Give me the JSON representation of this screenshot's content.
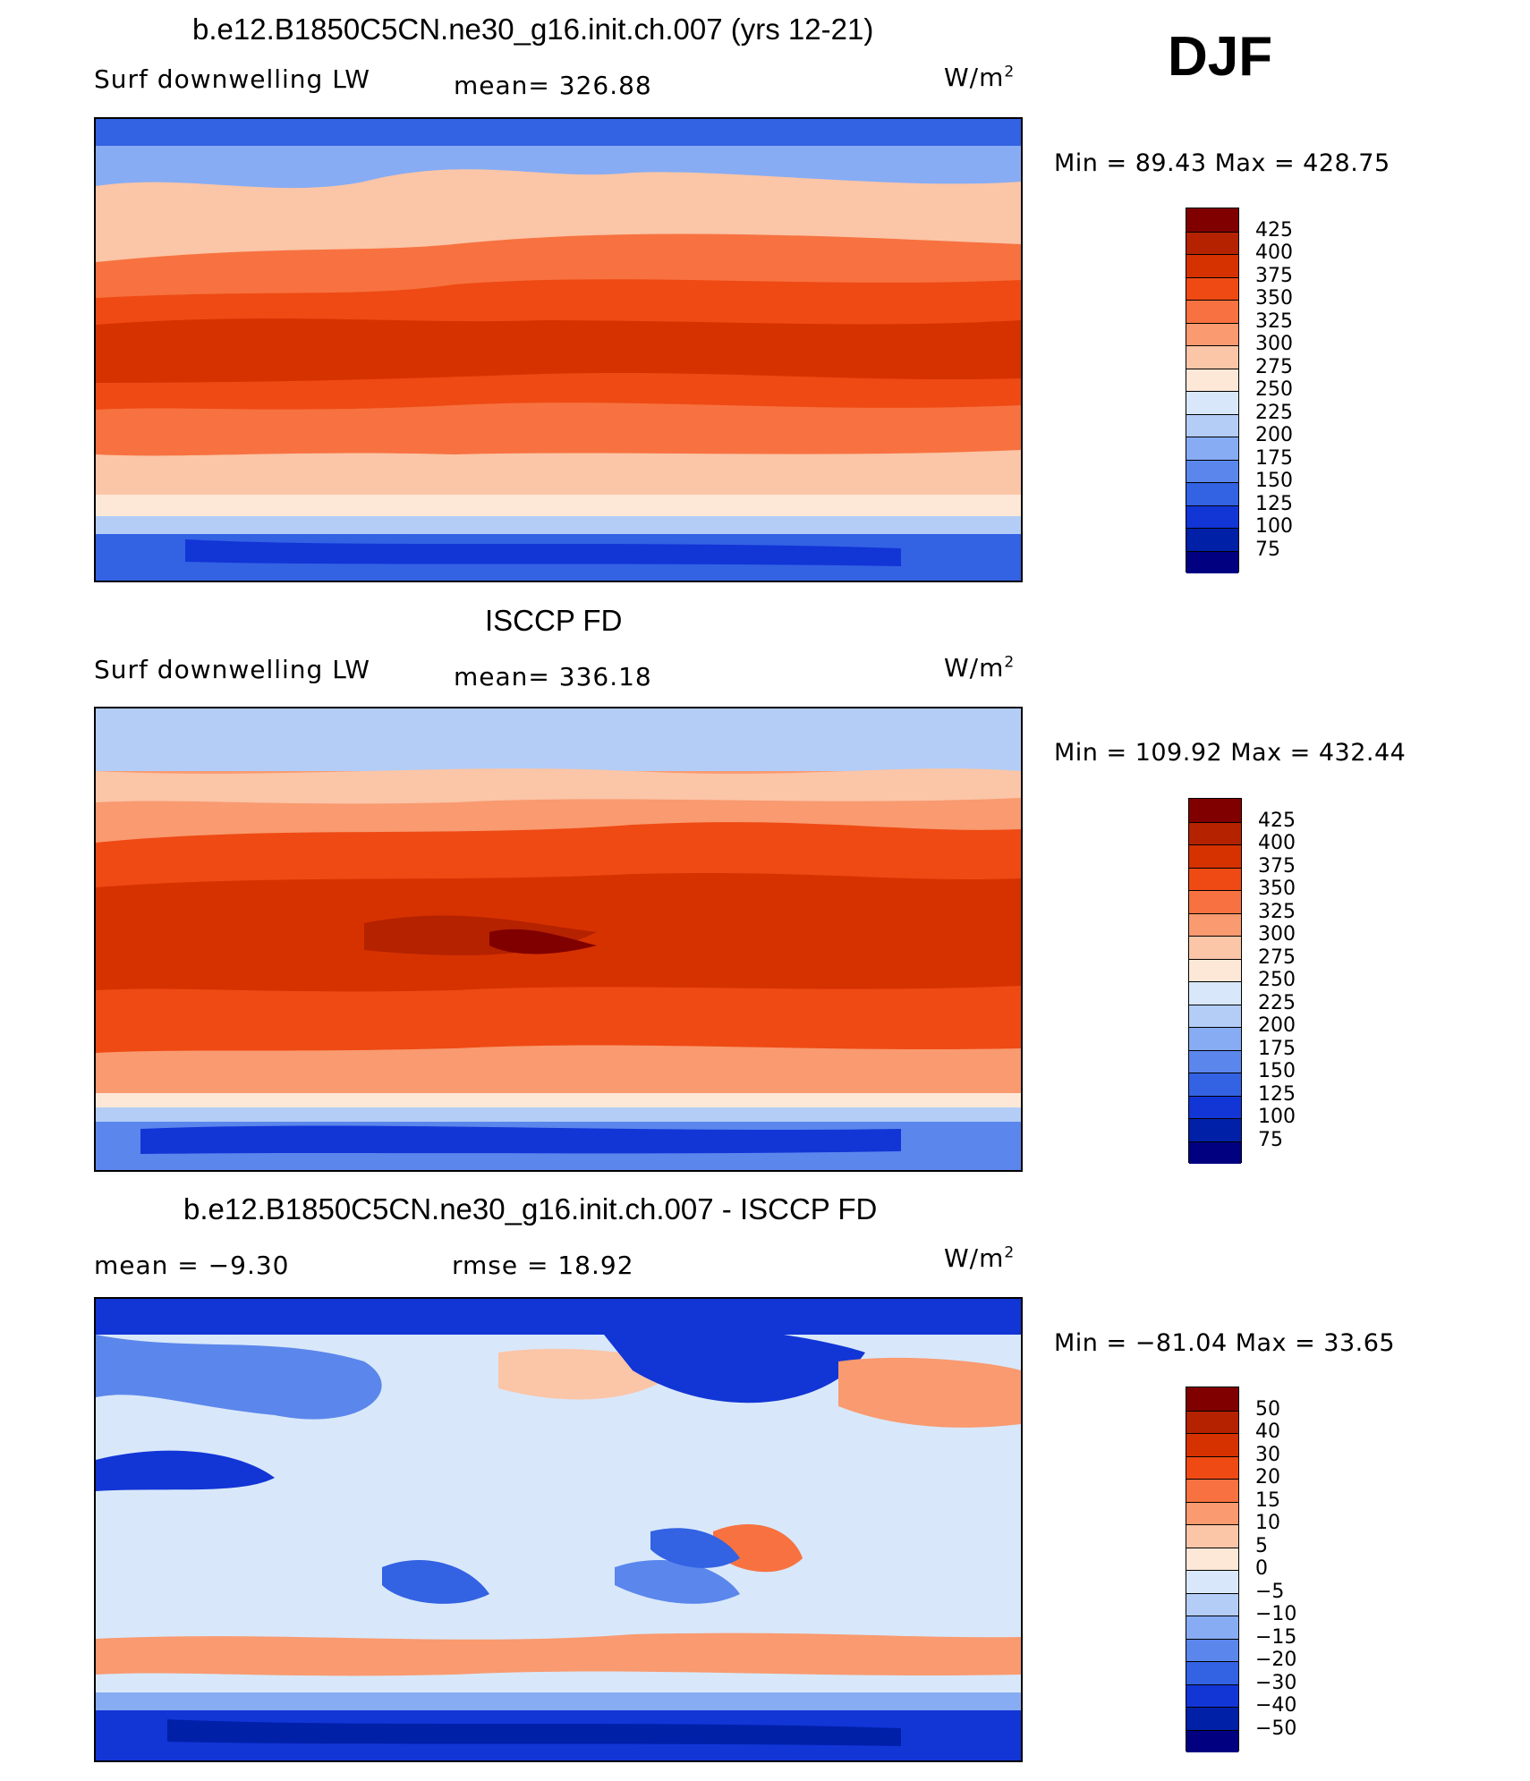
{
  "header": {
    "season": "DJF"
  },
  "panels": [
    {
      "title": "b.e12.B1850C5CN.ne30_g16.init.ch.007 (yrs 12-21)",
      "left_text": "Surf downwelling LW",
      "middle_text": "mean= 326.88",
      "unit_base": "W/m",
      "unit_exp": "2",
      "minmax": "Min =  89.43 Max = 428.75",
      "colorbar_labels": [
        "425",
        "400",
        "375",
        "350",
        "325",
        "300",
        "275",
        "250",
        "225",
        "200",
        "175",
        "150",
        "125",
        "100",
        "75"
      ],
      "colors": [
        "#800000",
        "#b52200",
        "#d63200",
        "#ef4a14",
        "#f77240",
        "#f99a70",
        "#fbc5a7",
        "#fde8d8",
        "#d8e8fa",
        "#b3cdf7",
        "#87acf3",
        "#5b86ec",
        "#3362e3",
        "#1235d6",
        "#0020a8",
        "#000080"
      ]
    },
    {
      "title": "ISCCP FD",
      "left_text": "Surf downwelling LW",
      "middle_text": "mean= 336.18",
      "unit_base": "W/m",
      "unit_exp": "2",
      "minmax": "Min = 109.92 Max = 432.44",
      "colorbar_labels": [
        "425",
        "400",
        "375",
        "350",
        "325",
        "300",
        "275",
        "250",
        "225",
        "200",
        "175",
        "150",
        "125",
        "100",
        "75"
      ],
      "colors": [
        "#800000",
        "#b52200",
        "#d63200",
        "#ef4a14",
        "#f77240",
        "#f99a70",
        "#fbc5a7",
        "#fde8d8",
        "#d8e8fa",
        "#b3cdf7",
        "#87acf3",
        "#5b86ec",
        "#3362e3",
        "#1235d6",
        "#0020a8",
        "#000080"
      ]
    },
    {
      "title": "b.e12.B1850C5CN.ne30_g16.init.ch.007 - ISCCP FD",
      "left_text": "mean =   −9.30",
      "middle_text": "rmse =   18.92",
      "unit_base": "W/m",
      "unit_exp": "2",
      "minmax": "Min = −81.04 Max =   33.65",
      "colorbar_labels": [
        "50",
        "40",
        "30",
        "20",
        "15",
        "10",
        "5",
        "0",
        "−5",
        "−10",
        "−15",
        "−20",
        "−30",
        "−40",
        "−50"
      ],
      "colors": [
        "#800000",
        "#b52200",
        "#d63200",
        "#ef4a14",
        "#f77240",
        "#f99a70",
        "#fbc5a7",
        "#fde8d8",
        "#d8e8fa",
        "#b3cdf7",
        "#87acf3",
        "#5b86ec",
        "#3362e3",
        "#1235d6",
        "#0020a8",
        "#000080"
      ]
    }
  ]
}
